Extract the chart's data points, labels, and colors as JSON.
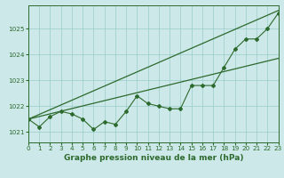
{
  "title": "Graphe pression niveau de la mer (hPa)",
  "x_values": [
    0,
    1,
    2,
    3,
    4,
    5,
    6,
    7,
    8,
    9,
    10,
    11,
    12,
    13,
    14,
    15,
    16,
    17,
    18,
    19,
    20,
    21,
    22,
    23
  ],
  "line_main": [
    1021.5,
    1021.2,
    1021.6,
    1021.8,
    1021.7,
    1021.5,
    1021.1,
    1021.4,
    1021.3,
    1021.8,
    1022.4,
    1022.1,
    1022.0,
    1021.9,
    1021.9,
    1022.8,
    1022.8,
    1022.8,
    1023.5,
    1024.2,
    1024.6,
    1024.6,
    1025.0,
    1025.6
  ],
  "line_upper_straight": [
    1021.5,
    1021.68,
    1021.86,
    1022.04,
    1022.22,
    1022.4,
    1022.58,
    1022.76,
    1022.94,
    1023.12,
    1023.3,
    1023.48,
    1023.66,
    1023.84,
    1024.02,
    1024.2,
    1024.38,
    1024.56,
    1024.74,
    1024.92,
    1025.1,
    1025.28,
    1025.46,
    1025.64
  ],
  "line_lower_straight": [
    1021.5,
    1021.6,
    1021.7,
    1021.8,
    1021.9,
    1022.0,
    1022.1,
    1022.2,
    1022.3,
    1022.4,
    1022.5,
    1022.6,
    1022.7,
    1022.8,
    1022.9,
    1023.0,
    1023.1,
    1023.2,
    1023.3,
    1023.4,
    1023.5,
    1023.6,
    1023.7,
    1023.8
  ],
  "line_color": "#2d6a2d",
  "bg_color": "#cce8e8",
  "grid_color": "#99cccc",
  "xlim": [
    0,
    23
  ],
  "ylim": [
    1020.6,
    1025.9
  ],
  "yticks": [
    1021,
    1022,
    1023,
    1024,
    1025
  ],
  "xticks": [
    0,
    1,
    2,
    3,
    4,
    5,
    6,
    7,
    8,
    9,
    10,
    11,
    12,
    13,
    14,
    15,
    16,
    17,
    18,
    19,
    20,
    21,
    22,
    23
  ],
  "tick_fontsize": 5.2,
  "title_fontsize": 6.5,
  "title_fontweight": "bold"
}
